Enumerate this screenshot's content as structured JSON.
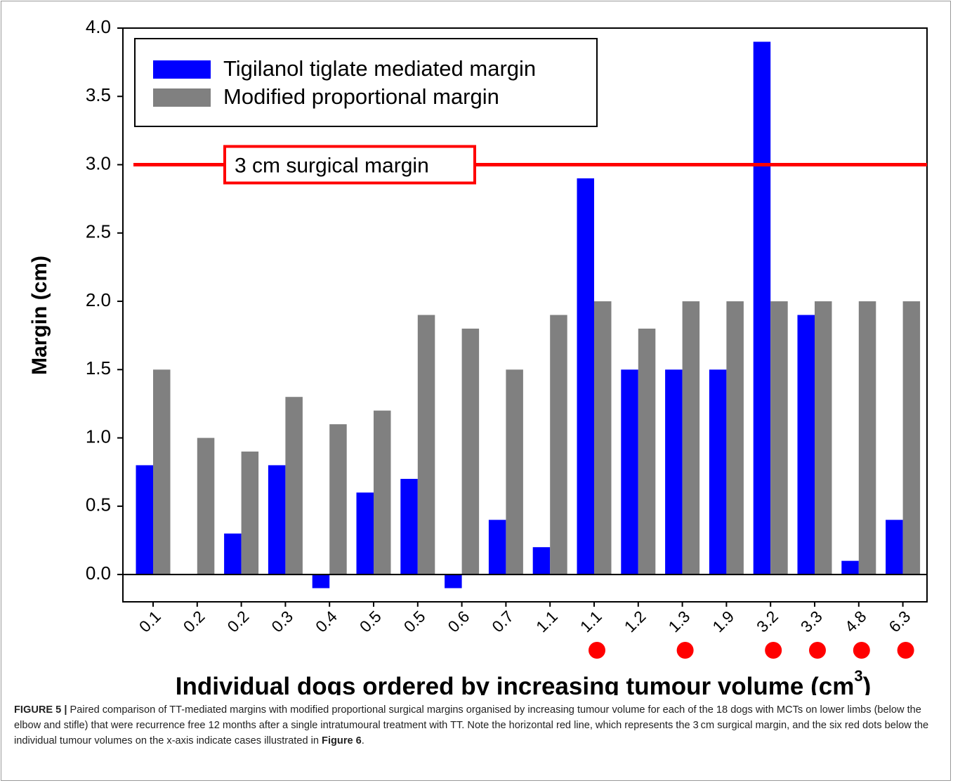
{
  "chart_data": {
    "type": "bar",
    "categories": [
      "0.1",
      "0.2",
      "0.2",
      "0.3",
      "0.4",
      "0.5",
      "0.5",
      "0.6",
      "0.7",
      "1.1",
      "1.1",
      "1.2",
      "1.3",
      "1.9",
      "3.2",
      "3.3",
      "4.8",
      "6.3"
    ],
    "series": [
      {
        "name": "Tigilanol tiglate mediated margin",
        "color": "#0000ff",
        "values": [
          0.8,
          0,
          0.3,
          0.8,
          -0.1,
          0.6,
          0.7,
          -0.1,
          0.4,
          0.2,
          2.9,
          1.5,
          1.5,
          1.5,
          3.9,
          1.9,
          0.1,
          0.4
        ]
      },
      {
        "name": "Modified proportional margin",
        "color": "#808080",
        "values": [
          1.5,
          1.0,
          0.9,
          1.3,
          1.1,
          1.2,
          1.9,
          1.8,
          1.5,
          1.9,
          2.0,
          1.8,
          2.0,
          2.0,
          2.0,
          2.0,
          2.0,
          2.0
        ]
      }
    ],
    "ylim": [
      -0.2,
      4.0
    ],
    "yticks": [
      {
        "value": 0,
        "label": "0.0"
      },
      {
        "value": 0.5,
        "label": "0.5"
      },
      {
        "value": 1,
        "label": "1.0"
      },
      {
        "value": 1.5,
        "label": "1.5"
      },
      {
        "value": 2,
        "label": "2.0"
      },
      {
        "value": 2.5,
        "label": "2.5"
      },
      {
        "value": 3,
        "label": "3.0"
      },
      {
        "value": 3.5,
        "label": "3.5"
      },
      {
        "value": 4,
        "label": "4.0"
      }
    ],
    "y_label": "Margin (cm)",
    "x_label": "Individual dogs ordered by increasing tumour volume (cm",
    "x_label_sup": "3",
    "x_label_end": ")",
    "reference_line": {
      "value": 3.0,
      "label": "3 cm surgical margin",
      "color": "#ff0000"
    },
    "highlighted_indices": [
      10,
      12,
      14,
      15,
      16,
      17
    ],
    "highlight_color": "#ff0000",
    "legend": "upper left"
  },
  "caption": {
    "label": "FIGURE 5 |",
    "text": " Paired comparison of TT-mediated margins with modified proportional surgical margins organised by increasing tumour volume for each of the 18 dogs with MCTs on lower limbs (below the elbow and stifle) that were recurrence free 12 months after a single intratumoural treatment with TT. Note the horizontal red line, which represents the 3 cm surgical margin, and the six red dots below the individual tumour volumes on the x-axis indicate cases illustrated in ",
    "ref": "Figure 6",
    "end": "."
  }
}
